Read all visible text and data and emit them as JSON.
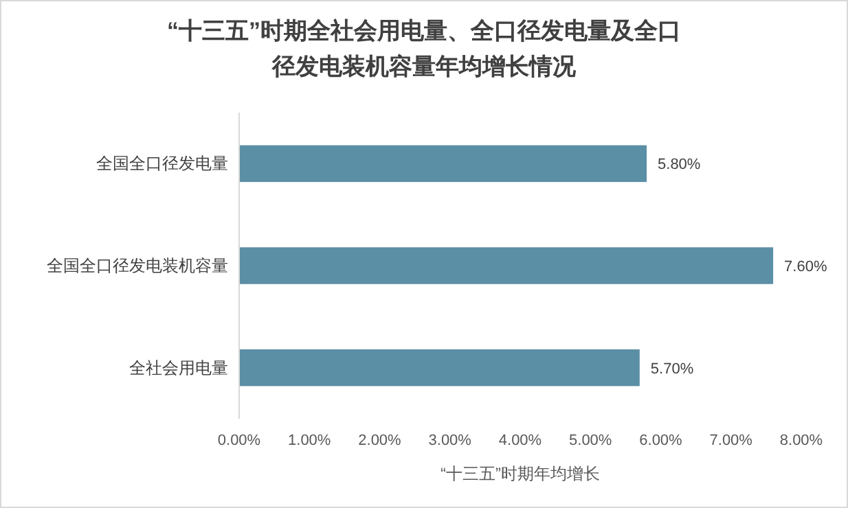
{
  "chart_data": {
    "type": "bar",
    "orientation": "horizontal",
    "title": "“十三五”时期全社会用电量、全口径发电量及全口径发电装机容量年均增长情况",
    "xlabel": "“十三五”时期年均增长",
    "categories": [
      "全国全口径发电量",
      "全国全口径发电装机容量",
      "全社会用电量"
    ],
    "values": [
      5.8,
      7.6,
      5.7
    ],
    "value_labels": [
      "5.80%",
      "7.60%",
      "5.70%"
    ],
    "color": "#5b8fa5",
    "xlim": [
      0,
      8
    ],
    "xticks": [
      {
        "value": 0,
        "label": "0.00%"
      },
      {
        "value": 1,
        "label": "1.00%"
      },
      {
        "value": 2,
        "label": "2.00%"
      },
      {
        "value": 3,
        "label": "3.00%"
      },
      {
        "value": 4,
        "label": "4.00%"
      },
      {
        "value": 5,
        "label": "5.00%"
      },
      {
        "value": 6,
        "label": "6.00%"
      },
      {
        "value": 7,
        "label": "7.00%"
      },
      {
        "value": 8,
        "label": "8.00%"
      }
    ],
    "grid": false
  }
}
